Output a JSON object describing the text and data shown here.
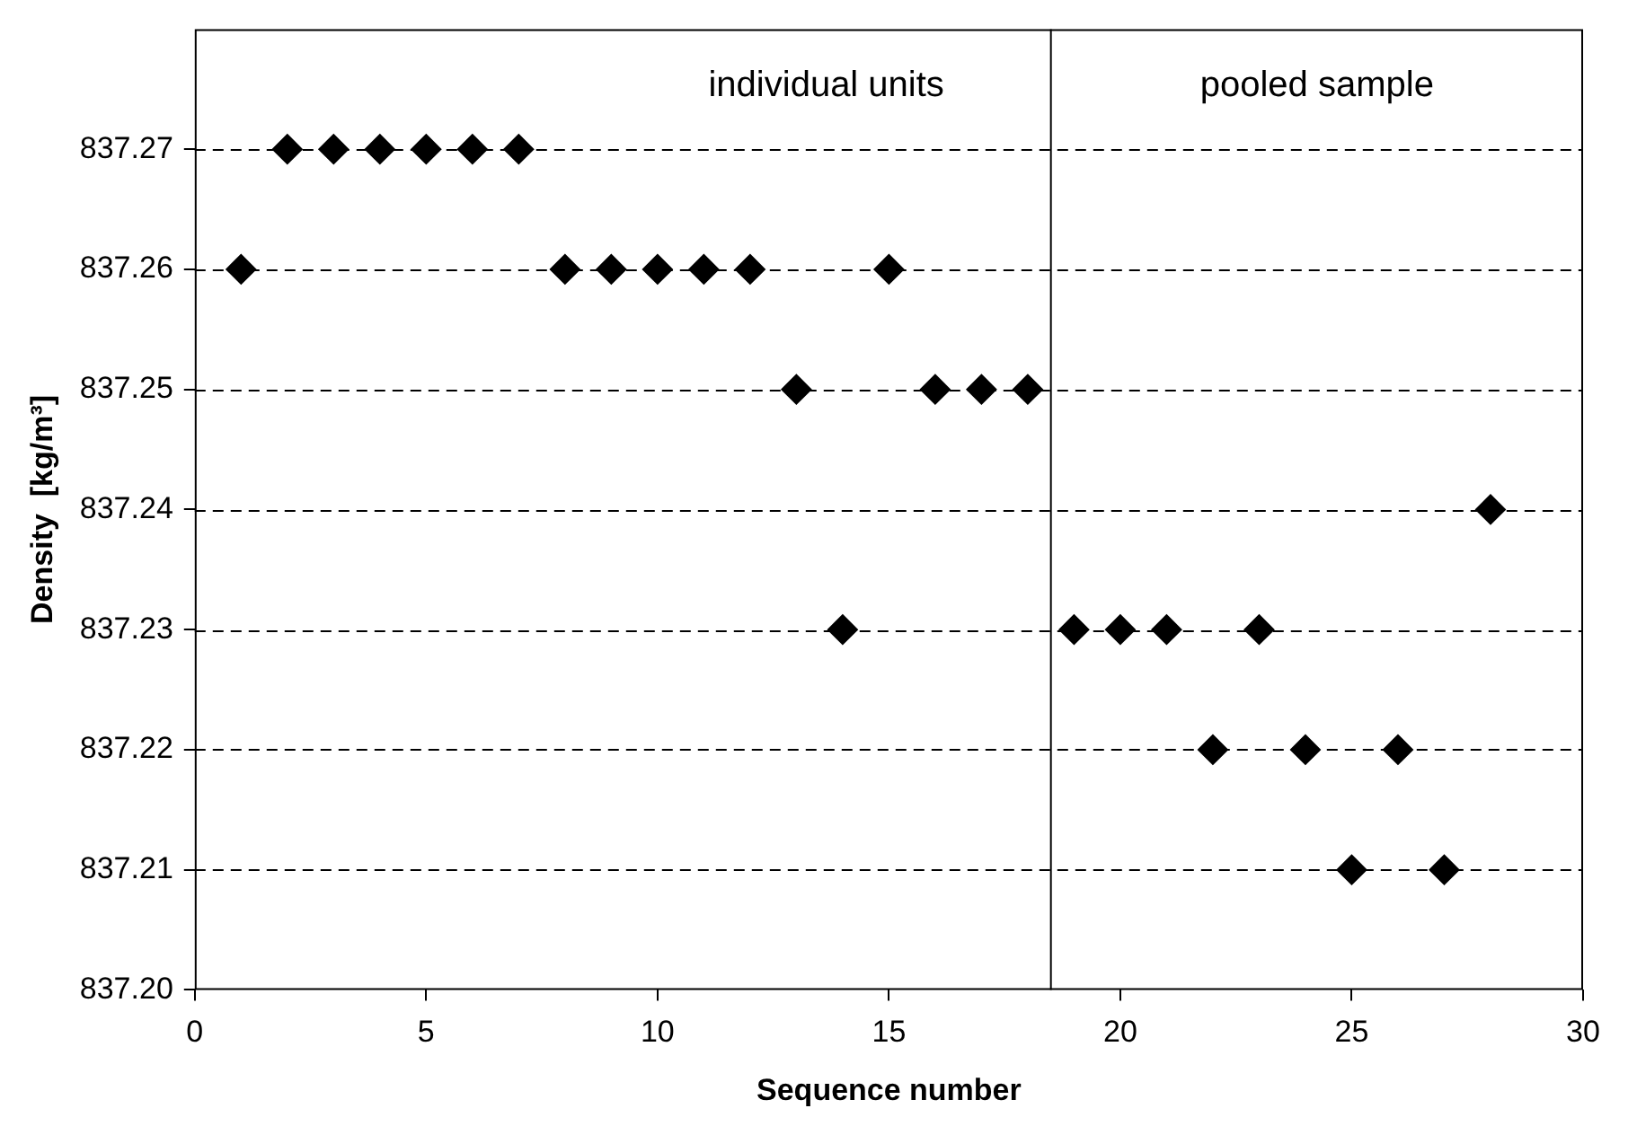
{
  "chart_data": {
    "type": "scatter",
    "xlabel": "Sequence number",
    "ylabel": "Density  [kg/m³]",
    "x": [
      1,
      2,
      3,
      4,
      5,
      6,
      7,
      8,
      9,
      10,
      11,
      12,
      13,
      14,
      15,
      16,
      17,
      18,
      19,
      20,
      21,
      22,
      23,
      24,
      25,
      26,
      27,
      28
    ],
    "series": [
      {
        "color": "#000000",
        "values": [
          837.26,
          837.27,
          837.27,
          837.27,
          837.27,
          837.27,
          837.27,
          837.26,
          837.26,
          837.26,
          837.26,
          837.26,
          837.25,
          837.23,
          837.26,
          837.25,
          837.25,
          837.25,
          837.23,
          837.23,
          837.23,
          837.22,
          837.23,
          837.22,
          837.21,
          837.22,
          837.21,
          837.24
        ]
      }
    ],
    "xlim": [
      0,
      30
    ],
    "xticks": [
      0,
      5,
      10,
      15,
      20,
      25,
      30
    ],
    "ylim": [
      837.2,
      837.28
    ],
    "yticks": [
      {
        "value": 837.2,
        "label": "837.20"
      },
      837.21,
      837.22,
      837.23,
      837.24,
      837.25,
      837.26,
      837.27
    ],
    "grid": "y",
    "line_style": "dashed",
    "marker": "diamond",
    "legend": false,
    "ref_lines": [
      {
        "axis": "x",
        "value": 18.5,
        "color": "#000000"
      }
    ],
    "annotations": [
      "individual units",
      "pooled sample"
    ]
  }
}
